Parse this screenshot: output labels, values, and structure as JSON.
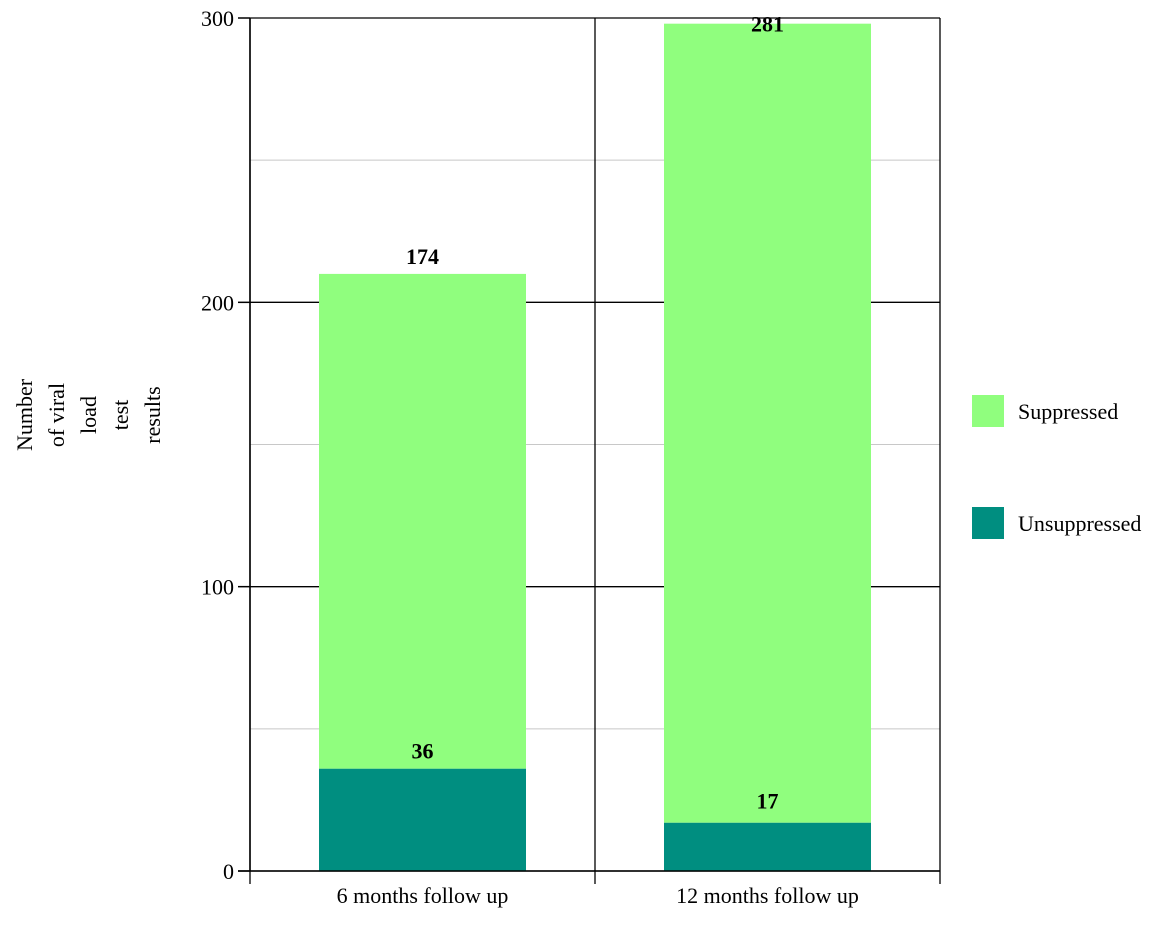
{
  "chart_data": {
    "type": "bar",
    "stacked": true,
    "categories": [
      "6 months follow up",
      "12 months follow up"
    ],
    "series": [
      {
        "name": "Unsuppressed",
        "values": [
          36,
          17
        ],
        "color": "#008e80"
      },
      {
        "name": "Suppressed",
        "values": [
          174,
          281
        ],
        "color": "#90fe7e"
      }
    ],
    "data_labels": {
      "Unsuppressed": [
        "36",
        "17"
      ],
      "Suppressed": [
        "174",
        "281"
      ]
    },
    "title": "",
    "xlabel": "",
    "ylabel_lines": [
      "Number",
      "of viral",
      "load",
      "test",
      "results"
    ],
    "ylim": [
      0,
      300
    ],
    "yticks": [
      0,
      100,
      200,
      300
    ],
    "gridlines": {
      "major": [
        0,
        100,
        200,
        300
      ],
      "minor": [
        50,
        150,
        250
      ]
    },
    "legend": {
      "position": "right",
      "order": [
        "Suppressed",
        "Unsuppressed"
      ]
    }
  }
}
